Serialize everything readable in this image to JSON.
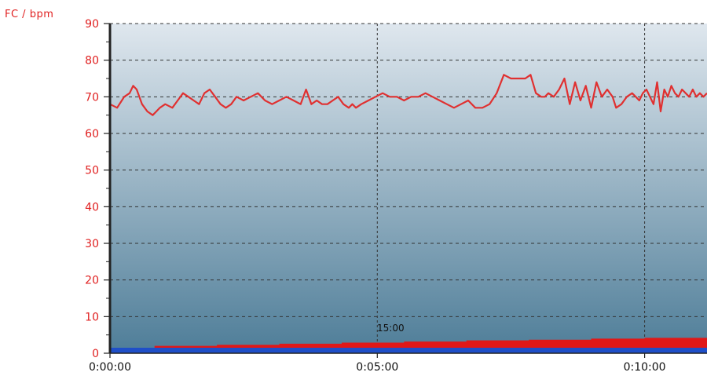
{
  "chart_data": {
    "type": "line",
    "ylabel": "FC / bpm",
    "xlabel": "",
    "ylim": [
      0,
      90
    ],
    "xlim_seconds": [
      0,
      670
    ],
    "y_ticks": [
      "0",
      "10",
      "20",
      "30",
      "40",
      "50",
      "60",
      "70",
      "80",
      "90"
    ],
    "x_ticks": [
      {
        "label": "0:00:00",
        "seconds": 0
      },
      {
        "label": "0:05:00",
        "seconds": 300
      },
      {
        "label": "0:10:00",
        "seconds": 600
      }
    ],
    "grid": true,
    "colors": {
      "heart_rate": "#e03030",
      "bottom_band": "#1f4fc8",
      "secondary": "#e01818",
      "plot_top": "#dfe7ee",
      "plot_bottom": "#4e7d98",
      "grid": "#333333",
      "axis": "#222222"
    },
    "series": [
      {
        "x": [
          0,
          8,
          16,
          22,
          26,
          30,
          36,
          42,
          48,
          52,
          56,
          62,
          70,
          76,
          82,
          88,
          94,
          100,
          106,
          112,
          118,
          124,
          130,
          136,
          142,
          150,
          158,
          166,
          174,
          182,
          190,
          198,
          206,
          214,
          220,
          226,
          232,
          238,
          244,
          250,
          256,
          262,
          268,
          272,
          276,
          282,
          290,
          298,
          306,
          314,
          322,
          330,
          338,
          346,
          354,
          362,
          370,
          378,
          386,
          394,
          402,
          410,
          418,
          426,
          434,
          442,
          450,
          458,
          466,
          472,
          478,
          484,
          488,
          492,
          498,
          504,
          510,
          516,
          522,
          528,
          534,
          540,
          546,
          552,
          558,
          564,
          568,
          574,
          580,
          586,
          590,
          594,
          598,
          602,
          606,
          610,
          614,
          618,
          622,
          626,
          630,
          634,
          638,
          642,
          646,
          650,
          654,
          658,
          662,
          666,
          670
        ],
        "values": [
          68,
          67,
          70,
          71,
          73,
          72,
          68,
          66,
          65,
          66,
          67,
          68,
          67,
          69,
          71,
          70,
          69,
          68,
          71,
          72,
          70,
          68,
          67,
          68,
          70,
          69,
          70,
          71,
          69,
          68,
          69,
          70,
          69,
          68,
          72,
          68,
          69,
          68,
          68,
          69,
          70,
          68,
          67,
          68,
          67,
          68,
          69,
          70,
          71,
          70,
          70,
          69,
          70,
          70,
          71,
          70,
          69,
          68,
          67,
          68,
          69,
          67,
          67,
          68,
          71,
          76,
          75,
          75,
          75,
          76,
          71,
          70,
          70,
          71,
          70,
          72,
          75,
          68,
          74,
          69,
          73,
          67,
          74,
          70,
          72,
          70,
          67,
          68,
          70,
          71,
          70,
          69,
          71,
          72,
          70,
          68,
          74,
          66,
          72,
          70,
          73,
          71,
          70,
          72,
          71,
          70,
          72,
          70,
          71,
          70,
          71
        ]
      },
      {
        "x": [
          0,
          50,
          120,
          190,
          260,
          330,
          400,
          470,
          540,
          600,
          670
        ],
        "values": [
          1.5,
          2,
          2.3,
          2.6,
          2.9,
          3.2,
          3.5,
          3.7,
          4,
          4.2,
          4.5
        ]
      },
      {
        "x": [
          0,
          670
        ],
        "values": [
          1.5,
          1.5
        ]
      }
    ],
    "annotations": [
      {
        "text": "15:00",
        "x_seconds": 315,
        "y": 6
      }
    ]
  }
}
